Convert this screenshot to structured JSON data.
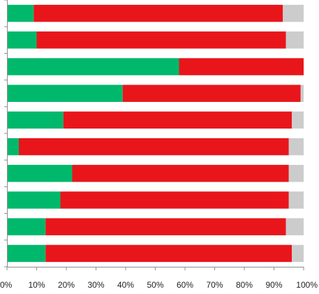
{
  "chart_data": {
    "type": "bar",
    "orientation": "horizontal",
    "stacked": true,
    "normalized": true,
    "title": "",
    "xlabel": "",
    "ylabel": "",
    "xlim": [
      0,
      100
    ],
    "x_ticks": [
      "0%",
      "10%",
      "20%",
      "30%",
      "40%",
      "50%",
      "60%",
      "70%",
      "80%",
      "90%",
      "100%"
    ],
    "grid": false,
    "legend": "none",
    "categories": [
      "",
      "",
      "",
      "",
      "",
      "",
      "",
      "",
      "",
      ""
    ],
    "series": [
      {
        "color": "#00b86b",
        "values": [
          9,
          10,
          58,
          39,
          19,
          4,
          22,
          18,
          13,
          13
        ]
      },
      {
        "color": "#e8161b",
        "values": [
          84,
          84,
          42,
          60,
          77,
          91,
          73,
          77,
          81,
          83
        ]
      },
      {
        "color": "#cccccc",
        "values": [
          7,
          6,
          0,
          1,
          4,
          5,
          5,
          5,
          6,
          4
        ]
      }
    ]
  }
}
